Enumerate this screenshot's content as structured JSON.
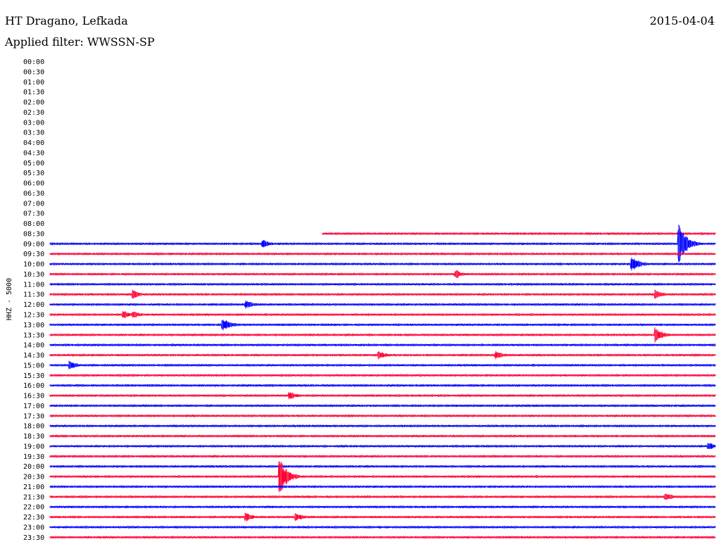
{
  "header": {
    "station": "HT Dragano, Lefkada",
    "date": "2015-04-04",
    "filter": "Applied filter: WWSSN-SP"
  },
  "chart_data": {
    "type": "line",
    "ylabel": "HHZ - 5000",
    "colors": {
      "odd": "#0000ff",
      "even": "#ff0033"
    },
    "data_start": "08:30",
    "rows": [
      "00:00",
      "00:30",
      "01:00",
      "01:30",
      "02:00",
      "02:30",
      "03:00",
      "03:30",
      "04:00",
      "04:30",
      "05:00",
      "05:30",
      "06:00",
      "06:30",
      "07:00",
      "07:30",
      "08:00",
      "08:30",
      "09:00",
      "09:30",
      "10:00",
      "10:30",
      "11:00",
      "11:30",
      "12:00",
      "12:30",
      "13:00",
      "13:30",
      "14:00",
      "14:30",
      "15:00",
      "15:30",
      "16:00",
      "16:30",
      "17:00",
      "17:30",
      "18:00",
      "18:30",
      "19:00",
      "19:30",
      "20:00",
      "20:30",
      "21:00",
      "21:30",
      "22:00",
      "22:30",
      "23:00",
      "23:30"
    ],
    "events": [
      {
        "row": "09:00",
        "t": 0.945,
        "amp": "large"
      },
      {
        "row": "09:00",
        "t": 0.32,
        "amp": "small"
      },
      {
        "row": "10:00",
        "t": 0.875,
        "amp": "medium"
      },
      {
        "row": "10:30",
        "t": 0.61,
        "amp": "small"
      },
      {
        "row": "11:30",
        "t": 0.125,
        "amp": "small"
      },
      {
        "row": "11:30",
        "t": 0.91,
        "amp": "small"
      },
      {
        "row": "12:00",
        "t": 0.295,
        "amp": "small"
      },
      {
        "row": "12:30",
        "t": 0.11,
        "amp": "small"
      },
      {
        "row": "12:30",
        "t": 0.125,
        "amp": "small"
      },
      {
        "row": "13:00",
        "t": 0.26,
        "amp": "medium"
      },
      {
        "row": "13:30",
        "t": 0.91,
        "amp": "medium"
      },
      {
        "row": "14:30",
        "t": 0.495,
        "amp": "small"
      },
      {
        "row": "14:30",
        "t": 0.67,
        "amp": "small"
      },
      {
        "row": "15:00",
        "t": 0.03,
        "amp": "small"
      },
      {
        "row": "16:30",
        "t": 0.36,
        "amp": "small"
      },
      {
        "row": "19:00",
        "t": 0.99,
        "amp": "small"
      },
      {
        "row": "20:30",
        "t": 0.345,
        "amp": "large"
      },
      {
        "row": "21:30",
        "t": 0.925,
        "amp": "small"
      },
      {
        "row": "22:30",
        "t": 0.295,
        "amp": "small"
      },
      {
        "row": "22:30",
        "t": 0.37,
        "amp": "small"
      }
    ]
  }
}
